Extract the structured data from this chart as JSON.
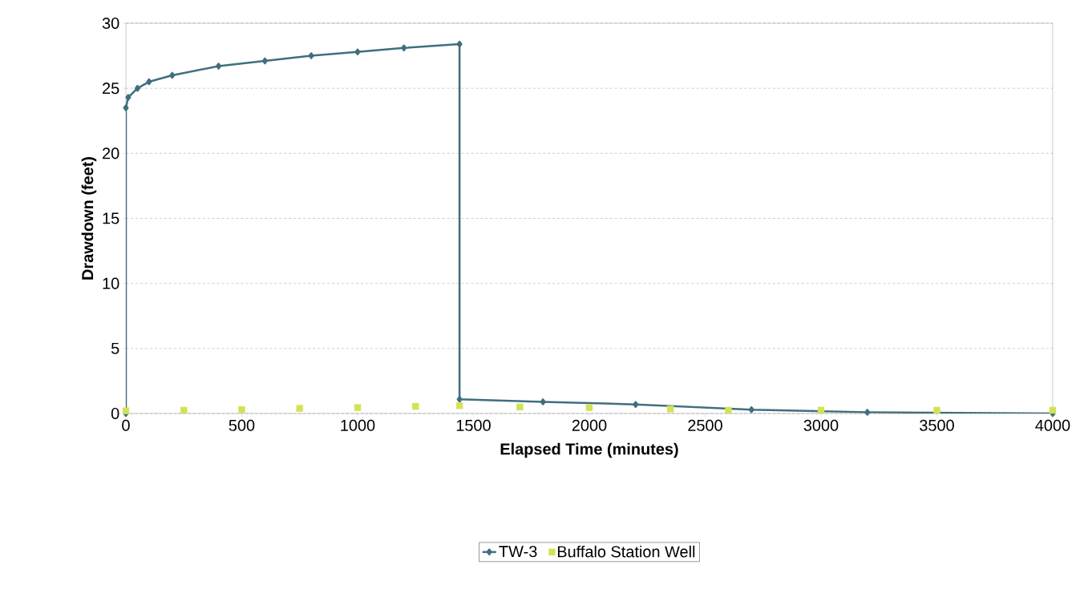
{
  "chart_data": {
    "type": "line",
    "xlabel": "Elapsed Time (minutes)",
    "ylabel": "Drawdown (feet)",
    "xlim": [
      0,
      4000
    ],
    "ylim": [
      0,
      30
    ],
    "xticks": [
      0,
      500,
      1000,
      1500,
      2000,
      2500,
      3000,
      3500,
      4000
    ],
    "yticks": [
      0,
      5,
      10,
      15,
      20,
      25,
      30
    ],
    "grid": "y",
    "legend": "bottom",
    "series": [
      {
        "name": "TW-3",
        "color": "#3f6f7f",
        "marker": "diamond",
        "x": [
          0,
          0,
          10,
          50,
          100,
          200,
          400,
          600,
          800,
          1000,
          1200,
          1440,
          1440,
          1800,
          2200,
          2700,
          3200,
          4000
        ],
        "values": [
          0,
          23.5,
          24.3,
          25.0,
          25.5,
          26.0,
          26.7,
          27.1,
          27.5,
          27.8,
          28.1,
          28.4,
          1.1,
          0.9,
          0.7,
          0.3,
          0.1,
          0
        ]
      },
      {
        "name": "Buffalo Station Well",
        "type": "scatter",
        "color": "#d4e157",
        "marker": "square",
        "x": [
          0,
          250,
          500,
          750,
          1000,
          1250,
          1440,
          1700,
          2000,
          2350,
          2600,
          3000,
          3500,
          4000
        ],
        "values": [
          0.2,
          0.25,
          0.3,
          0.4,
          0.45,
          0.55,
          0.6,
          0.5,
          0.45,
          0.35,
          0.25,
          0.25,
          0.25,
          0.25
        ]
      }
    ]
  }
}
